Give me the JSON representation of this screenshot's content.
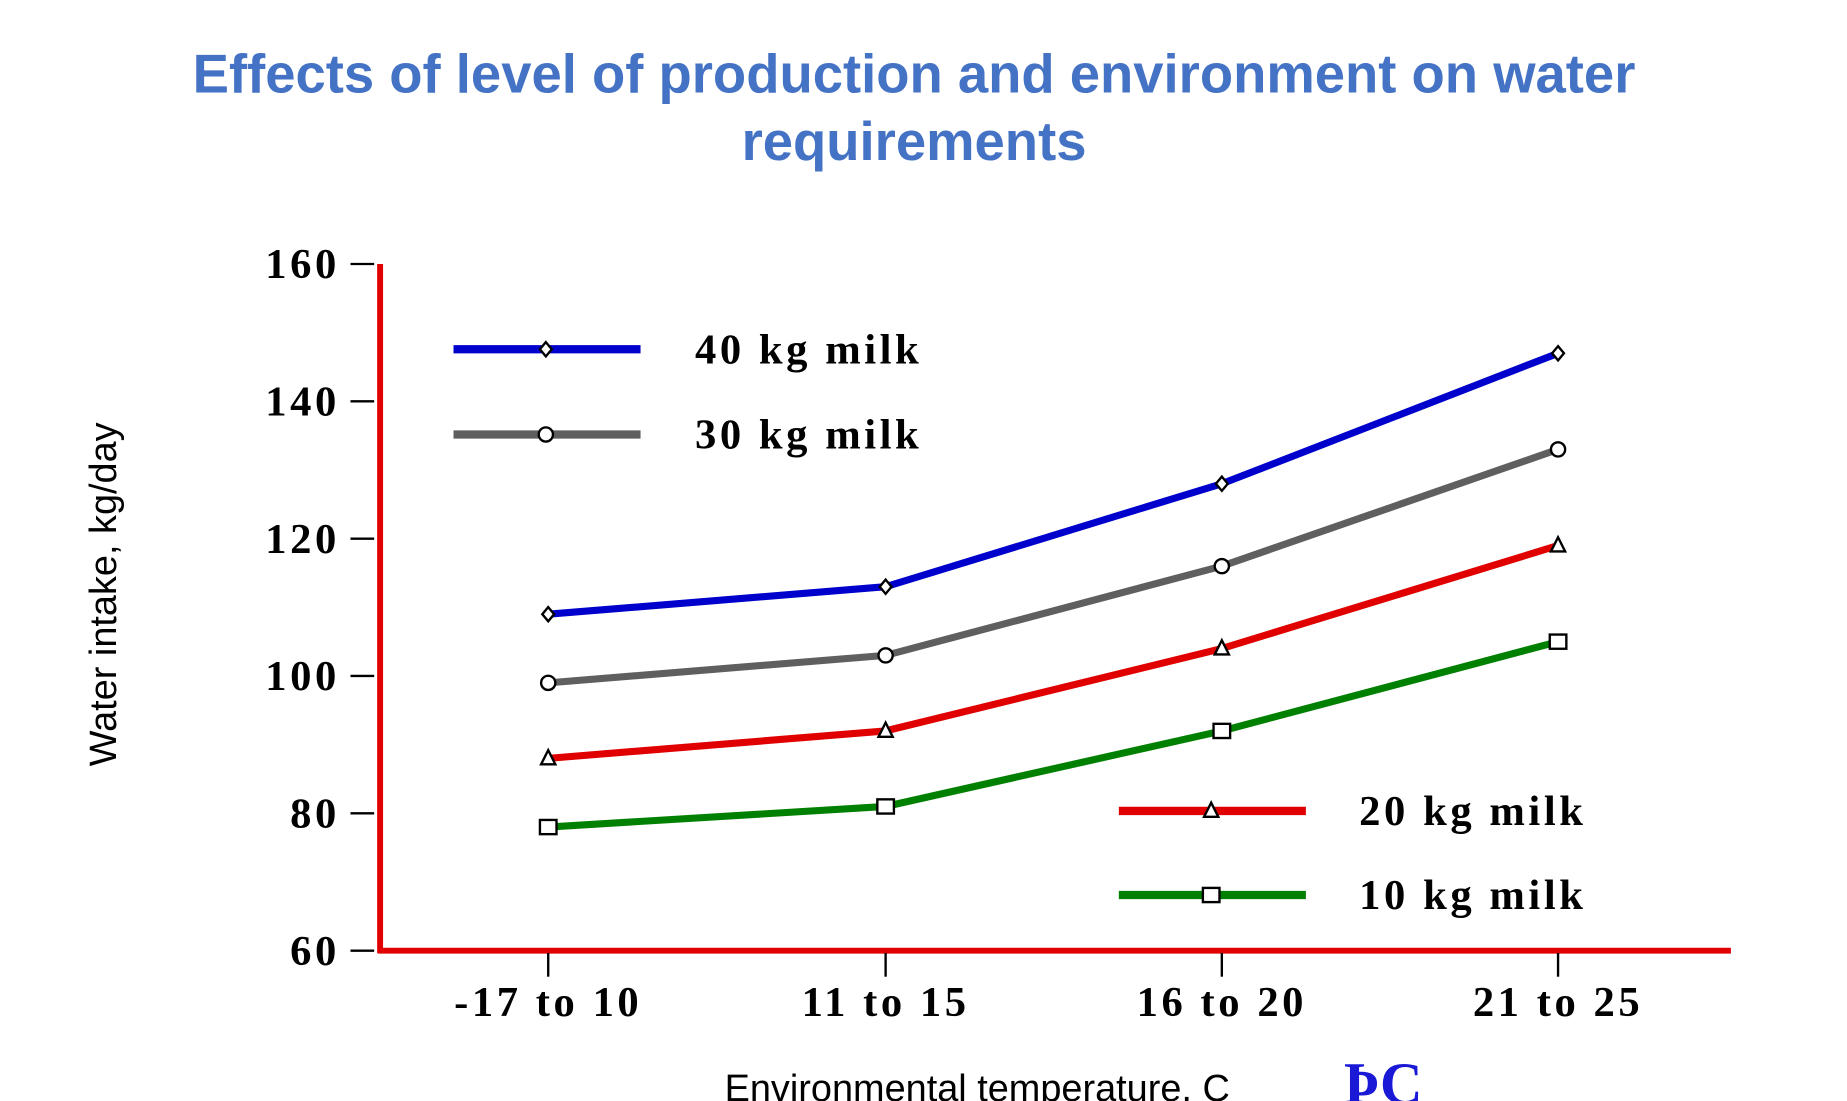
{
  "chart_data": {
    "type": "line",
    "title": "Effects of level of production and environment on water requirements",
    "title_lines": [
      "Effects of level of production and environment on water",
      "requirements"
    ],
    "xlabel": "Environmental temperature, C",
    "xlabel_unit_glyph": "ÞC",
    "ylabel": "Water intake, kg/day",
    "categories": [
      "-17 to 10",
      "11 to 15",
      "16 to 20",
      "21 to 25"
    ],
    "ylim": [
      60,
      160
    ],
    "yticks": [
      60,
      80,
      100,
      120,
      140,
      160
    ],
    "grid": false,
    "axis_color": "#E00000",
    "series": [
      {
        "name": "40 kg milk",
        "values": [
          109,
          113,
          128,
          147
        ],
        "color": "#0000CC",
        "marker": "diamond"
      },
      {
        "name": "30 kg milk",
        "values": [
          99,
          103,
          116,
          133
        ],
        "color": "#5F5F5F",
        "marker": "circle"
      },
      {
        "name": "20 kg milk",
        "values": [
          88,
          92,
          104,
          119
        ],
        "color": "#E00000",
        "marker": "triangle"
      },
      {
        "name": "10 kg milk",
        "values": [
          78,
          81,
          92,
          105
        ],
        "color": "#008000",
        "marker": "square"
      }
    ]
  }
}
